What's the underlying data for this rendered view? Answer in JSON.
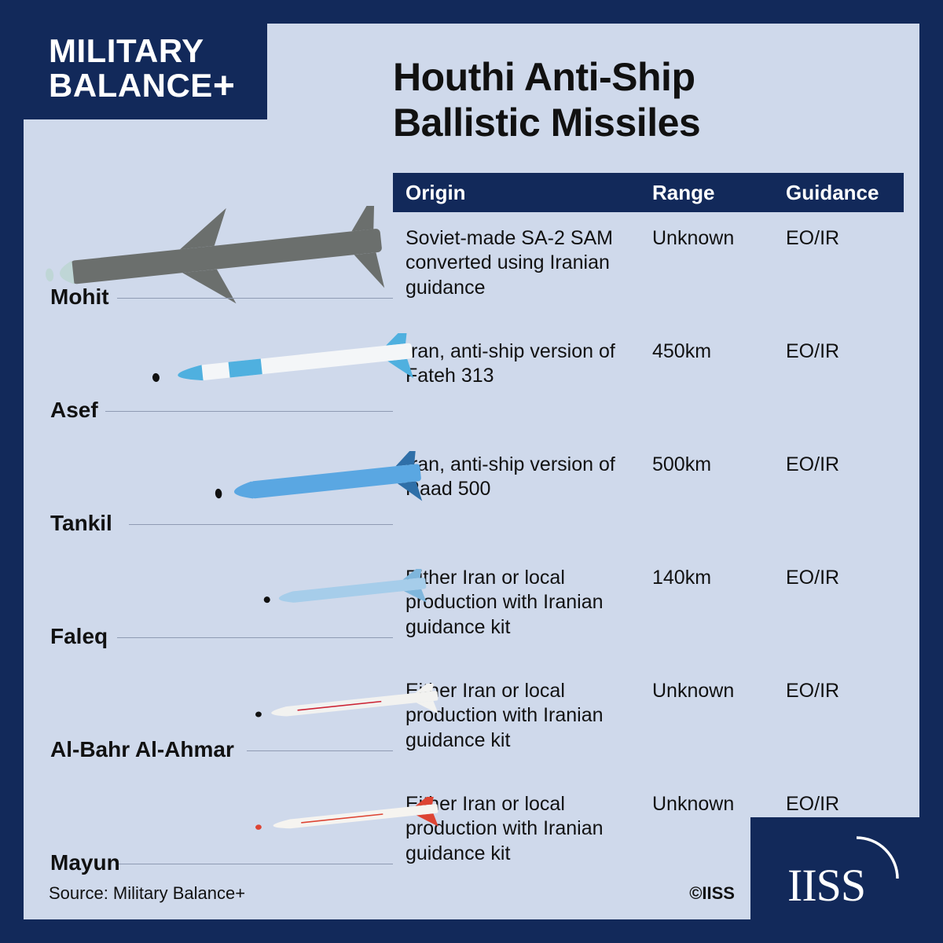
{
  "brand": {
    "line1": "MILITARY",
    "line2": "BALANCE",
    "plus": "+"
  },
  "title": "Houthi Anti-Ship\nBallistic Missiles",
  "columns": {
    "origin": "Origin",
    "range": "Range",
    "guidance": "Guidance"
  },
  "source": "Source: Military Balance+",
  "copyright": "©IISS",
  "colors": {
    "frame": "#12295a",
    "panel": "#cfd9eb",
    "text": "#111111",
    "leader": "#8f9bb3"
  },
  "missiles": [
    {
      "name": "Mohit",
      "origin": "Soviet-made SA-2 SAM converted using Iranian guidance",
      "range": "Unknown",
      "guidance": "EO/IR",
      "render": {
        "body_color": "#6b6f6d",
        "nose_color": "#bfd6d6",
        "fin_color": "#6b6f6d",
        "length": 430,
        "diameter": 30,
        "nose_len": 34,
        "fins_mid": true,
        "fins_tail": true,
        "fin_size": 46,
        "scale": 1.0,
        "y": -8
      }
    },
    {
      "name": "Asef",
      "origin": "Iran, anti-ship version of Fateh 313",
      "range": "450km",
      "guidance": "EO/IR",
      "render": {
        "body_color": "#f4f6f8",
        "nose_color": "#4fb0df",
        "fin_color": "#4fb0df",
        "nose_tip": "#111",
        "band_color": "#4fb0df",
        "length": 370,
        "diameter": 22,
        "nose_len": 70,
        "fins_mid": false,
        "fins_tail": true,
        "fin_size": 28,
        "scale": 0.9,
        "y": 10
      }
    },
    {
      "name": "Tankil",
      "origin": "Iran, anti-ship version of Raad 500",
      "range": "500km",
      "guidance": "EO/IR",
      "render": {
        "body_color": "#5aa7e2",
        "nose_color": "#5aa7e2",
        "fin_color": "#2f6fa8",
        "nose_tip": "#111",
        "length": 310,
        "diameter": 26,
        "nose_len": 55,
        "fins_mid": false,
        "fins_tail": true,
        "fin_size": 30,
        "scale": 0.85,
        "y": 16
      }
    },
    {
      "name": "Faleq",
      "origin": "Either Iran or local production with Iranian guidance kit",
      "range": "140km",
      "guidance": "EO/IR",
      "render": {
        "body_color": "#a6cdea",
        "nose_color": "#a6cdea",
        "fin_color": "#7fb6dc",
        "nose_tip": "#111",
        "length": 260,
        "diameter": 18,
        "nose_len": 46,
        "fins_mid": false,
        "fins_tail": true,
        "fin_size": 22,
        "scale": 0.8,
        "y": 22
      }
    },
    {
      "name": "Al-Bahr Al-Ahmar",
      "origin": "Either Iran or local production with Iranian guidance kit",
      "range": "Unknown",
      "guidance": "EO/IR",
      "render": {
        "body_color": "#f2f2f0",
        "nose_color": "#f2f2f0",
        "fin_color": "#f2f2f0",
        "accent": "#c23",
        "nose_tip": "#111",
        "length": 300,
        "diameter": 16,
        "nose_len": 50,
        "fins_mid": false,
        "fins_tail": true,
        "fin_size": 22,
        "scale": 0.78,
        "y": 24
      }
    },
    {
      "name": "Mayun",
      "origin": "Either Iran or local production with Iranian guidance kit",
      "range": "Unknown",
      "guidance": "EO/IR",
      "render": {
        "body_color": "#f6f4f0",
        "nose_color": "#f6f4f0",
        "fin_color": "#d43",
        "accent": "#d43",
        "nose_tip": "#d43",
        "length": 300,
        "diameter": 15,
        "nose_len": 56,
        "fins_mid": false,
        "fins_tail": true,
        "fin_size": 22,
        "scale": 0.78,
        "y": 24
      }
    }
  ]
}
